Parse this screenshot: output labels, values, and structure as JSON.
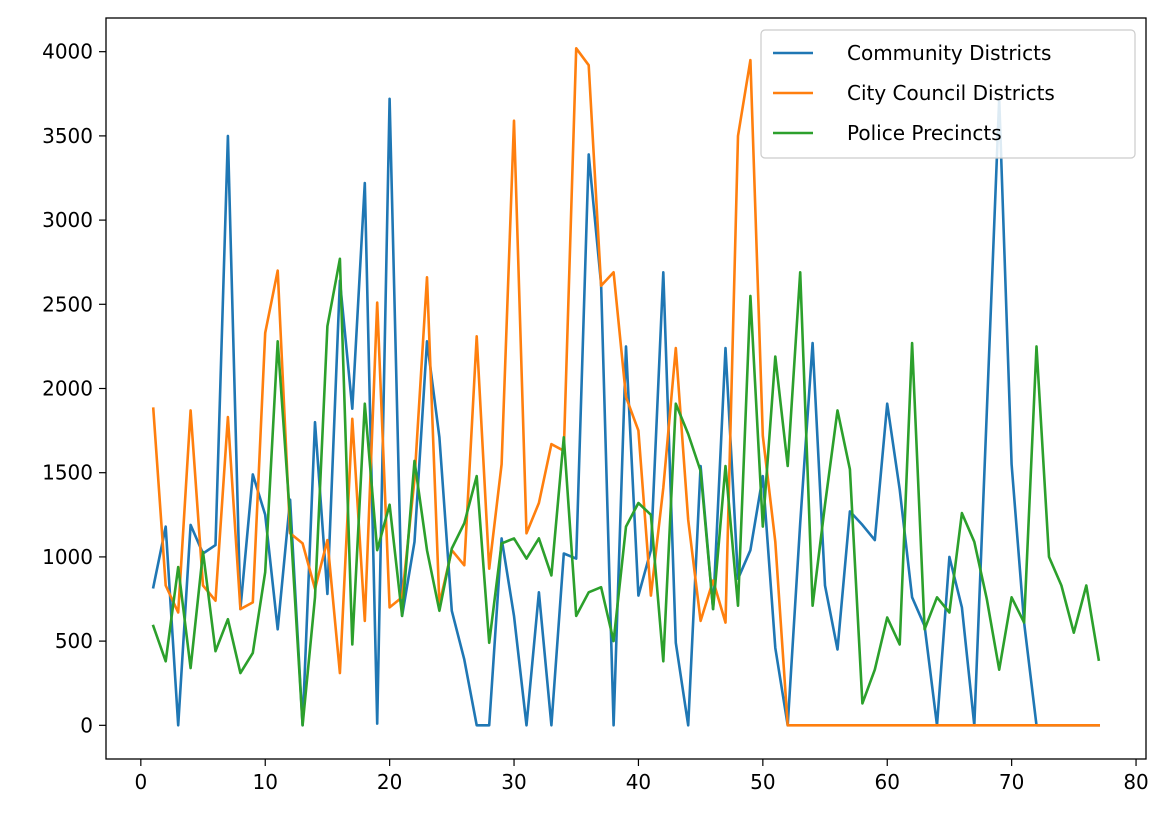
{
  "chart_data": {
    "type": "line",
    "title": "",
    "xlabel": "",
    "ylabel": "",
    "xlim": [
      -2.8,
      80.8
    ],
    "ylim": [
      -200,
      4200
    ],
    "x_ticks": [
      0,
      10,
      20,
      30,
      40,
      50,
      60,
      70,
      80
    ],
    "y_ticks": [
      0,
      500,
      1000,
      1500,
      2000,
      2500,
      3000,
      3500,
      4000
    ],
    "grid": false,
    "legend_position": "top-right",
    "x": [
      1,
      2,
      3,
      4,
      5,
      6,
      7,
      8,
      9,
      10,
      11,
      12,
      13,
      14,
      15,
      16,
      17,
      18,
      19,
      20,
      21,
      22,
      23,
      24,
      25,
      26,
      27,
      28,
      29,
      30,
      31,
      32,
      33,
      34,
      35,
      36,
      37,
      38,
      39,
      40,
      41,
      42,
      43,
      44,
      45,
      46,
      47,
      48,
      49,
      50,
      51,
      52,
      53,
      54,
      55,
      56,
      57,
      58,
      59,
      60,
      61,
      62,
      63,
      64,
      65,
      66,
      67,
      68,
      69,
      70,
      71,
      72,
      73,
      74,
      75,
      76,
      77
    ],
    "series": [
      {
        "name": "Community Districts",
        "color": "#1f77b4",
        "values": [
          820,
          1180,
          0,
          1190,
          1020,
          1070,
          3500,
          690,
          1490,
          1250,
          570,
          1340,
          0,
          1800,
          780,
          2640,
          1880,
          3220,
          10,
          3720,
          650,
          1090,
          2280,
          1710,
          680,
          390,
          0,
          0,
          1110,
          650,
          0,
          790,
          0,
          1020,
          990,
          3390,
          2620,
          0,
          2250,
          770,
          1040,
          2690,
          490,
          0,
          1540,
          690,
          2240,
          870,
          1040,
          1480,
          460,
          0,
          1200,
          2270,
          830,
          450,
          1270,
          1190,
          1100,
          1910,
          1400,
          760,
          590,
          0,
          1000,
          700,
          0,
          1860,
          3720,
          1550,
          610,
          0,
          0,
          0,
          0,
          0,
          0
        ]
      },
      {
        "name": "City Council Districts",
        "color": "#ff7f0e",
        "values": [
          1880,
          830,
          670,
          1870,
          830,
          740,
          1830,
          690,
          730,
          2330,
          2700,
          1140,
          1080,
          810,
          1100,
          310,
          1820,
          620,
          2510,
          700,
          760,
          1460,
          2660,
          720,
          1040,
          950,
          2310,
          930,
          1550,
          3590,
          1140,
          1320,
          1670,
          1630,
          4020,
          3920,
          2610,
          2690,
          1950,
          1750,
          770,
          1410,
          2240,
          1220,
          620,
          860,
          610,
          3500,
          3950,
          1720,
          1090,
          0,
          0,
          0,
          0,
          0,
          0,
          0,
          0,
          0,
          0,
          0,
          0,
          0,
          0,
          0,
          0,
          0,
          0,
          0,
          0,
          0,
          0,
          0,
          0,
          0,
          0
        ]
      },
      {
        "name": "Police Precincts",
        "color": "#2ca02c",
        "values": [
          590,
          380,
          940,
          340,
          1030,
          440,
          630,
          310,
          430,
          910,
          2280,
          1230,
          0,
          760,
          2370,
          2770,
          480,
          1910,
          1040,
          1310,
          650,
          1570,
          1040,
          680,
          1050,
          1200,
          1480,
          490,
          1080,
          1110,
          990,
          1110,
          890,
          1710,
          650,
          790,
          820,
          500,
          1180,
          1320,
          1250,
          380,
          1910,
          1730,
          1510,
          690,
          1540,
          710,
          2550,
          1180,
          2190,
          1540,
          2690,
          710,
          1310,
          1870,
          1520,
          130,
          330,
          640,
          480,
          2270,
          570,
          760,
          670,
          1260,
          1090,
          750,
          330,
          760,
          610,
          2250,
          1000,
          830,
          550,
          830,
          390
        ]
      }
    ]
  }
}
